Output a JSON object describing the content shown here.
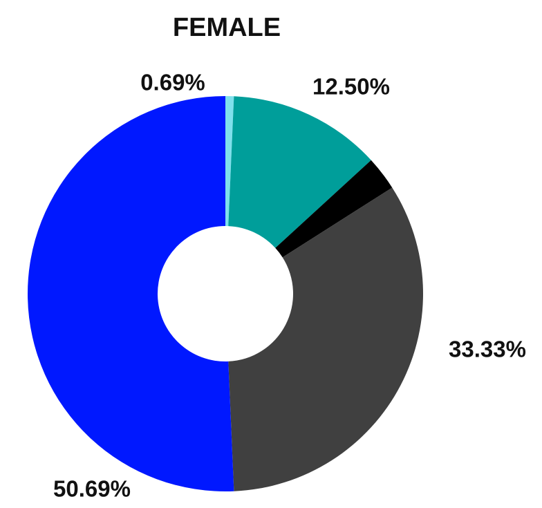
{
  "chart_data": {
    "type": "donut",
    "title": "FEMALE",
    "values": [
      0.69,
      12.5,
      2.79,
      33.33,
      50.69
    ],
    "value_labels": [
      "0.69%",
      "12.50%",
      null,
      "33.33%",
      "50.69%"
    ],
    "colors": [
      "#7fe0ec",
      "#009e9a",
      "#000000",
      "#404040",
      "#0018ff"
    ]
  }
}
